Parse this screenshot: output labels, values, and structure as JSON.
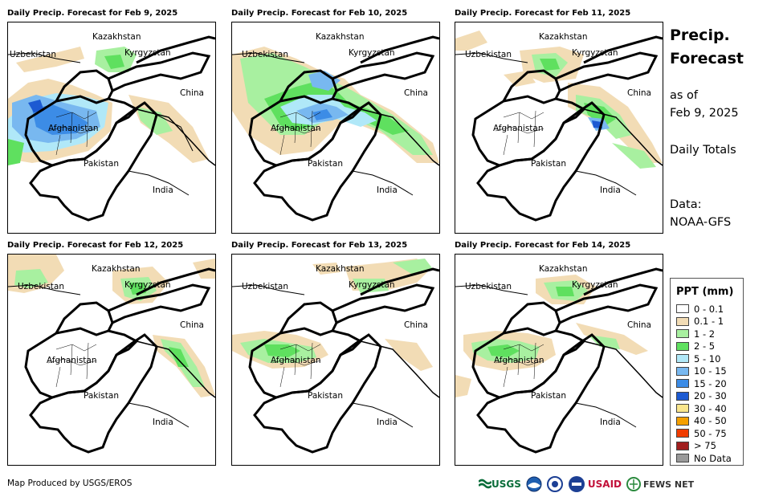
{
  "panels": [
    {
      "title": "Daily Precip. Forecast for Feb 9, 2025"
    },
    {
      "title": "Daily Precip. Forecast for Feb 10, 2025"
    },
    {
      "title": "Daily Precip. Forecast for Feb 11, 2025"
    },
    {
      "title": "Daily Precip. Forecast for Feb 12, 2025"
    },
    {
      "title": "Daily Precip. Forecast for Feb 13, 2025"
    },
    {
      "title": "Daily Precip. Forecast for Feb 14, 2025"
    }
  ],
  "map_labels": {
    "kazakhstan": "Kazakhstan",
    "uzbekistan": "Uzbekistan",
    "kyrgyzstan": "Kyrgyzstan",
    "china": "China",
    "afghanistan": "Afghanistan",
    "pakistan": "Pakistan",
    "india": "India"
  },
  "side": {
    "title_line1": "Precip.",
    "title_line2": "Forecast",
    "asof_line1": "as of",
    "asof_line2": "Feb 9, 2025",
    "daily": "Daily Totals",
    "data_line1": "Data:",
    "data_line2": "NOAA-GFS"
  },
  "legend": {
    "title": "PPT (mm)",
    "items": [
      {
        "label": "0 - 0.1",
        "color": "#ffffff"
      },
      {
        "label": "0.1 - 1",
        "color": "#f2dcb5"
      },
      {
        "label": "1 - 2",
        "color": "#a8f0a0"
      },
      {
        "label": "2 - 5",
        "color": "#5fe05f"
      },
      {
        "label": "5 - 10",
        "color": "#b0e8f8"
      },
      {
        "label": "10 - 15",
        "color": "#78b8f0"
      },
      {
        "label": "15 - 20",
        "color": "#3c8ce6"
      },
      {
        "label": "20 - 30",
        "color": "#1c5ad2"
      },
      {
        "label": "30 - 40",
        "color": "#fae68c"
      },
      {
        "label": "40 - 50",
        "color": "#f5a000"
      },
      {
        "label": "50 - 75",
        "color": "#f03c00"
      },
      {
        "label": "> 75",
        "color": "#a01e1e"
      },
      {
        "label": "No Data",
        "color": "#999999"
      }
    ]
  },
  "footer": {
    "credit": "Map Produced by USGS/EROS"
  },
  "logos": {
    "usgs": "USGS",
    "usaid": "USAID",
    "fews": "FEWS NET"
  }
}
